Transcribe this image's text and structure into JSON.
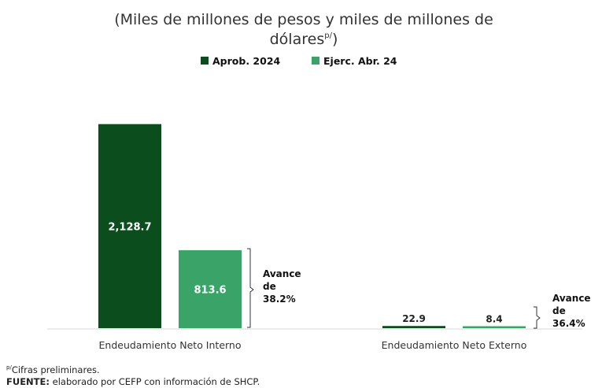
{
  "chart_data": {
    "type": "bar",
    "title_line1": "(Miles de millones de pesos y miles de millones de",
    "title_line2": "dólares",
    "title_sup": "p/",
    "title_close": ")",
    "categories": [
      "Endeudamiento Neto Interno",
      "Endeudamiento Neto Externo"
    ],
    "series": [
      {
        "name": "Aprob. 2024",
        "values": [
          2128.7,
          22.9
        ],
        "color": "#0b4d1c"
      },
      {
        "name": "Ejerc. Abr. 24",
        "values": [
          813.6,
          8.4
        ],
        "color": "#3aa367"
      }
    ],
    "value_labels": [
      [
        "2,128.7",
        "22.9"
      ],
      [
        "813.6",
        "8.4"
      ]
    ],
    "annotations": [
      {
        "lines": [
          "Avance",
          "de",
          "38.2%"
        ]
      },
      {
        "lines": [
          "Avance",
          "de",
          "36.4%"
        ]
      }
    ],
    "ylim": [
      0,
      2200
    ],
    "grid": false,
    "legend_position": "top-center"
  },
  "footnotes": {
    "prelim_sup": "p/",
    "prelim_text": "Cifras preliminares.",
    "fuente_label": "FUENTE:",
    "fuente_text": "elaborado por CEFP con información de SHCP."
  }
}
